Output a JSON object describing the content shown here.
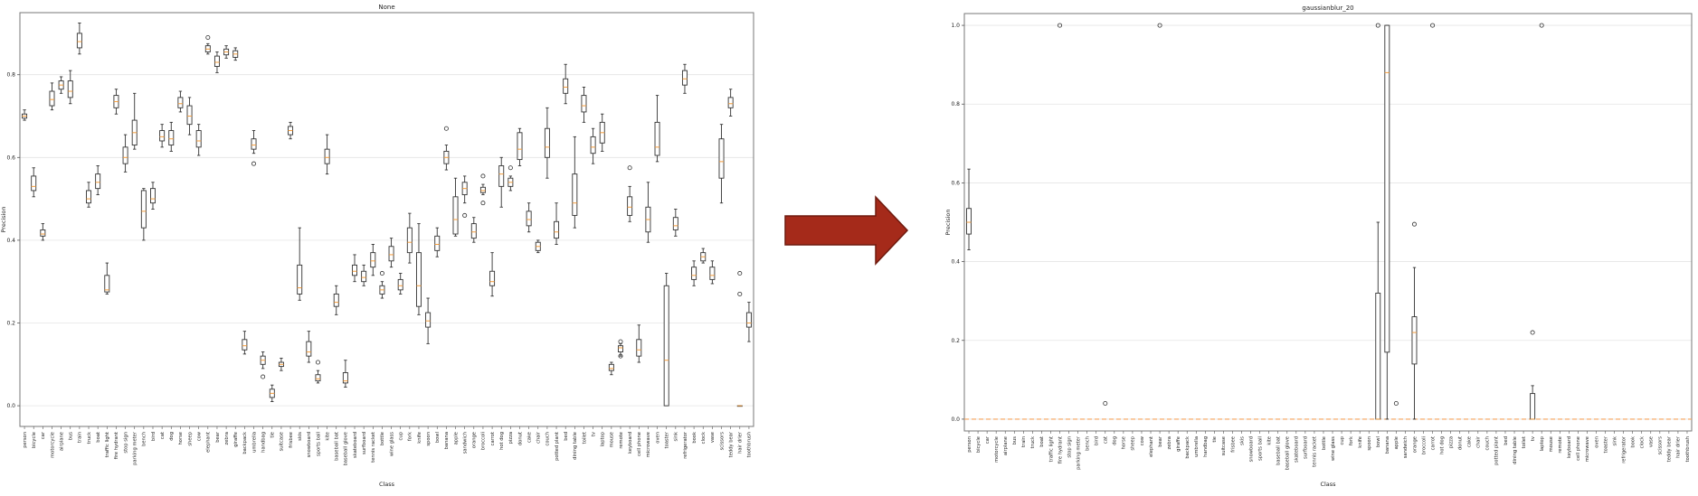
{
  "categories": [
    "person",
    "bicycle",
    "car",
    "motorcycle",
    "airplane",
    "bus",
    "train",
    "truck",
    "boat",
    "traffic light",
    "fire hydrant",
    "stop sign",
    "parking meter",
    "bench",
    "bird",
    "cat",
    "dog",
    "horse",
    "sheep",
    "cow",
    "elephant",
    "bear",
    "zebra",
    "giraffe",
    "backpack",
    "umbrella",
    "handbag",
    "tie",
    "suitcase",
    "frisbee",
    "skis",
    "snowboard",
    "sports ball",
    "kite",
    "baseball bat",
    "baseball glove",
    "skateboard",
    "surfboard",
    "tennis racket",
    "bottle",
    "wine glass",
    "cup",
    "fork",
    "knife",
    "spoon",
    "bowl",
    "banana",
    "apple",
    "sandwich",
    "orange",
    "broccoli",
    "carrot",
    "hot dog",
    "pizza",
    "donut",
    "cake",
    "chair",
    "couch",
    "potted plant",
    "bed",
    "dining table",
    "toilet",
    "tv",
    "laptop",
    "mouse",
    "remote",
    "keyboard",
    "cell phone",
    "microwave",
    "oven",
    "toaster",
    "sink",
    "refrigerator",
    "book",
    "clock",
    "vase",
    "scissors",
    "teddy bear",
    "hair drier",
    "toothbrush"
  ],
  "arrow_color": "#a52a1a",
  "chart_data": [
    {
      "type": "box",
      "title": "None",
      "xlabel": "Class",
      "ylabel": "Precision",
      "ylim": [
        -0.05,
        0.95
      ],
      "yticks": [
        0.0,
        0.2,
        0.4,
        0.6,
        0.8
      ],
      "ytick_labels": [
        "0.0",
        "0.2",
        "0.4",
        "0.6",
        "0.8"
      ],
      "grid": true,
      "boxes": [
        {
          "q1": 0.695,
          "med": 0.7,
          "q3": 0.705,
          "lo": 0.69,
          "hi": 0.715,
          "fl": []
        },
        {
          "q1": 0.52,
          "med": 0.53,
          "q3": 0.555,
          "lo": 0.505,
          "hi": 0.575,
          "fl": []
        },
        {
          "q1": 0.41,
          "med": 0.415,
          "q3": 0.425,
          "lo": 0.4,
          "hi": 0.44,
          "fl": []
        },
        {
          "q1": 0.725,
          "med": 0.74,
          "q3": 0.76,
          "lo": 0.715,
          "hi": 0.78,
          "fl": []
        },
        {
          "q1": 0.765,
          "med": 0.775,
          "q3": 0.785,
          "lo": 0.755,
          "hi": 0.795,
          "fl": []
        },
        {
          "q1": 0.745,
          "med": 0.76,
          "q3": 0.785,
          "lo": 0.73,
          "hi": 0.81,
          "fl": []
        },
        {
          "q1": 0.865,
          "med": 0.88,
          "q3": 0.9,
          "lo": 0.85,
          "hi": 0.925,
          "fl": []
        },
        {
          "q1": 0.49,
          "med": 0.5,
          "q3": 0.52,
          "lo": 0.48,
          "hi": 0.54,
          "fl": []
        },
        {
          "q1": 0.525,
          "med": 0.54,
          "q3": 0.56,
          "lo": 0.51,
          "hi": 0.58,
          "fl": []
        },
        {
          "q1": 0.275,
          "med": 0.28,
          "q3": 0.315,
          "lo": 0.27,
          "hi": 0.345,
          "fl": []
        },
        {
          "q1": 0.72,
          "med": 0.735,
          "q3": 0.75,
          "lo": 0.705,
          "hi": 0.765,
          "fl": []
        },
        {
          "q1": 0.585,
          "med": 0.6,
          "q3": 0.625,
          "lo": 0.565,
          "hi": 0.655,
          "fl": []
        },
        {
          "q1": 0.63,
          "med": 0.66,
          "q3": 0.69,
          "lo": 0.62,
          "hi": 0.755,
          "fl": []
        },
        {
          "q1": 0.43,
          "med": 0.47,
          "q3": 0.52,
          "lo": 0.4,
          "hi": 0.525,
          "fl": []
        },
        {
          "q1": 0.49,
          "med": 0.5,
          "q3": 0.525,
          "lo": 0.475,
          "hi": 0.54,
          "fl": []
        },
        {
          "q1": 0.64,
          "med": 0.65,
          "q3": 0.665,
          "lo": 0.625,
          "hi": 0.68,
          "fl": []
        },
        {
          "q1": 0.63,
          "med": 0.645,
          "q3": 0.665,
          "lo": 0.615,
          "hi": 0.685,
          "fl": []
        },
        {
          "q1": 0.72,
          "med": 0.73,
          "q3": 0.745,
          "lo": 0.71,
          "hi": 0.76,
          "fl": []
        },
        {
          "q1": 0.68,
          "med": 0.7,
          "q3": 0.725,
          "lo": 0.655,
          "hi": 0.745,
          "fl": []
        },
        {
          "q1": 0.625,
          "med": 0.64,
          "q3": 0.665,
          "lo": 0.605,
          "hi": 0.68,
          "fl": []
        },
        {
          "q1": 0.855,
          "med": 0.862,
          "q3": 0.87,
          "lo": 0.85,
          "hi": 0.875,
          "fl": [
            0.89
          ]
        },
        {
          "q1": 0.82,
          "med": 0.83,
          "q3": 0.845,
          "lo": 0.805,
          "hi": 0.855,
          "fl": []
        },
        {
          "q1": 0.848,
          "med": 0.855,
          "q3": 0.862,
          "lo": 0.84,
          "hi": 0.87,
          "fl": []
        },
        {
          "q1": 0.842,
          "med": 0.85,
          "q3": 0.858,
          "lo": 0.835,
          "hi": 0.865,
          "fl": []
        },
        {
          "q1": 0.135,
          "med": 0.145,
          "q3": 0.16,
          "lo": 0.125,
          "hi": 0.18,
          "fl": []
        },
        {
          "q1": 0.62,
          "med": 0.63,
          "q3": 0.645,
          "lo": 0.61,
          "hi": 0.665,
          "fl": [
            0.585
          ]
        },
        {
          "q1": 0.1,
          "med": 0.11,
          "q3": 0.12,
          "lo": 0.09,
          "hi": 0.13,
          "fl": [
            0.07
          ]
        },
        {
          "q1": 0.02,
          "med": 0.03,
          "q3": 0.04,
          "lo": 0.01,
          "hi": 0.05,
          "fl": []
        },
        {
          "q1": 0.095,
          "med": 0.1,
          "q3": 0.105,
          "lo": 0.085,
          "hi": 0.115,
          "fl": []
        },
        {
          "q1": 0.655,
          "med": 0.665,
          "q3": 0.675,
          "lo": 0.645,
          "hi": 0.685,
          "fl": []
        },
        {
          "q1": 0.27,
          "med": 0.285,
          "q3": 0.34,
          "lo": 0.255,
          "hi": 0.43,
          "fl": []
        },
        {
          "q1": 0.12,
          "med": 0.13,
          "q3": 0.155,
          "lo": 0.105,
          "hi": 0.18,
          "fl": []
        },
        {
          "q1": 0.06,
          "med": 0.065,
          "q3": 0.075,
          "lo": 0.055,
          "hi": 0.085,
          "fl": [
            0.105
          ]
        },
        {
          "q1": 0.585,
          "med": 0.6,
          "q3": 0.62,
          "lo": 0.56,
          "hi": 0.655,
          "fl": []
        },
        {
          "q1": 0.24,
          "med": 0.25,
          "q3": 0.27,
          "lo": 0.22,
          "hi": 0.29,
          "fl": []
        },
        {
          "q1": 0.055,
          "med": 0.06,
          "q3": 0.08,
          "lo": 0.045,
          "hi": 0.11,
          "fl": []
        },
        {
          "q1": 0.315,
          "med": 0.325,
          "q3": 0.34,
          "lo": 0.3,
          "hi": 0.365,
          "fl": []
        },
        {
          "q1": 0.3,
          "med": 0.31,
          "q3": 0.325,
          "lo": 0.29,
          "hi": 0.34,
          "fl": []
        },
        {
          "q1": 0.335,
          "med": 0.35,
          "q3": 0.37,
          "lo": 0.315,
          "hi": 0.39,
          "fl": []
        },
        {
          "q1": 0.27,
          "med": 0.28,
          "q3": 0.29,
          "lo": 0.26,
          "hi": 0.3,
          "fl": [
            0.32
          ]
        },
        {
          "q1": 0.35,
          "med": 0.365,
          "q3": 0.385,
          "lo": 0.335,
          "hi": 0.405,
          "fl": []
        },
        {
          "q1": 0.28,
          "med": 0.29,
          "q3": 0.305,
          "lo": 0.27,
          "hi": 0.32,
          "fl": []
        },
        {
          "q1": 0.37,
          "med": 0.395,
          "q3": 0.43,
          "lo": 0.345,
          "hi": 0.465,
          "fl": []
        },
        {
          "q1": 0.24,
          "med": 0.29,
          "q3": 0.37,
          "lo": 0.22,
          "hi": 0.44,
          "fl": []
        },
        {
          "q1": 0.19,
          "med": 0.205,
          "q3": 0.225,
          "lo": 0.15,
          "hi": 0.26,
          "fl": []
        },
        {
          "q1": 0.375,
          "med": 0.39,
          "q3": 0.41,
          "lo": 0.36,
          "hi": 0.43,
          "fl": []
        },
        {
          "q1": 0.585,
          "med": 0.6,
          "q3": 0.615,
          "lo": 0.57,
          "hi": 0.63,
          "fl": [
            0.67
          ]
        },
        {
          "q1": 0.415,
          "med": 0.45,
          "q3": 0.505,
          "lo": 0.41,
          "hi": 0.55,
          "fl": []
        },
        {
          "q1": 0.51,
          "med": 0.525,
          "q3": 0.54,
          "lo": 0.49,
          "hi": 0.555,
          "fl": [
            0.46
          ]
        },
        {
          "q1": 0.405,
          "med": 0.42,
          "q3": 0.44,
          "lo": 0.395,
          "hi": 0.455,
          "fl": []
        },
        {
          "q1": 0.515,
          "med": 0.52,
          "q3": 0.528,
          "lo": 0.51,
          "hi": 0.535,
          "fl": [
            0.555,
            0.49
          ]
        },
        {
          "q1": 0.29,
          "med": 0.3,
          "q3": 0.325,
          "lo": 0.265,
          "hi": 0.37,
          "fl": []
        },
        {
          "q1": 0.53,
          "med": 0.56,
          "q3": 0.58,
          "lo": 0.48,
          "hi": 0.6,
          "fl": []
        },
        {
          "q1": 0.53,
          "med": 0.54,
          "q3": 0.55,
          "lo": 0.52,
          "hi": 0.555,
          "fl": [
            0.575
          ]
        },
        {
          "q1": 0.595,
          "med": 0.62,
          "q3": 0.66,
          "lo": 0.58,
          "hi": 0.67,
          "fl": []
        },
        {
          "q1": 0.435,
          "med": 0.45,
          "q3": 0.47,
          "lo": 0.42,
          "hi": 0.49,
          "fl": []
        },
        {
          "q1": 0.375,
          "med": 0.385,
          "q3": 0.395,
          "lo": 0.37,
          "hi": 0.4,
          "fl": []
        },
        {
          "q1": 0.6,
          "med": 0.625,
          "q3": 0.67,
          "lo": 0.55,
          "hi": 0.72,
          "fl": []
        },
        {
          "q1": 0.405,
          "med": 0.42,
          "q3": 0.445,
          "lo": 0.39,
          "hi": 0.49,
          "fl": []
        },
        {
          "q1": 0.755,
          "med": 0.77,
          "q3": 0.79,
          "lo": 0.73,
          "hi": 0.825,
          "fl": []
        },
        {
          "q1": 0.46,
          "med": 0.49,
          "q3": 0.56,
          "lo": 0.43,
          "hi": 0.65,
          "fl": []
        },
        {
          "q1": 0.71,
          "med": 0.725,
          "q3": 0.75,
          "lo": 0.685,
          "hi": 0.77,
          "fl": []
        },
        {
          "q1": 0.61,
          "med": 0.625,
          "q3": 0.65,
          "lo": 0.585,
          "hi": 0.67,
          "fl": []
        },
        {
          "q1": 0.635,
          "med": 0.66,
          "q3": 0.685,
          "lo": 0.615,
          "hi": 0.705,
          "fl": []
        },
        {
          "q1": 0.085,
          "med": 0.09,
          "q3": 0.1,
          "lo": 0.075,
          "hi": 0.105,
          "fl": []
        },
        {
          "q1": 0.13,
          "med": 0.14,
          "q3": 0.145,
          "lo": 0.12,
          "hi": 0.15,
          "fl": [
            0.155,
            0.12
          ]
        },
        {
          "q1": 0.46,
          "med": 0.48,
          "q3": 0.505,
          "lo": 0.445,
          "hi": 0.53,
          "fl": [
            0.575
          ]
        },
        {
          "q1": 0.12,
          "med": 0.135,
          "q3": 0.16,
          "lo": 0.105,
          "hi": 0.195,
          "fl": []
        },
        {
          "q1": 0.42,
          "med": 0.45,
          "q3": 0.48,
          "lo": 0.395,
          "hi": 0.54,
          "fl": []
        },
        {
          "q1": 0.605,
          "med": 0.625,
          "q3": 0.685,
          "lo": 0.59,
          "hi": 0.75,
          "fl": []
        },
        {
          "q1": 0.0,
          "med": 0.11,
          "q3": 0.29,
          "lo": 0.0,
          "hi": 0.32,
          "fl": []
        },
        {
          "q1": 0.425,
          "med": 0.435,
          "q3": 0.455,
          "lo": 0.41,
          "hi": 0.475,
          "fl": []
        },
        {
          "q1": 0.775,
          "med": 0.79,
          "q3": 0.81,
          "lo": 0.755,
          "hi": 0.825,
          "fl": []
        },
        {
          "q1": 0.305,
          "med": 0.315,
          "q3": 0.335,
          "lo": 0.29,
          "hi": 0.35,
          "fl": []
        },
        {
          "q1": 0.35,
          "med": 0.36,
          "q3": 0.37,
          "lo": 0.345,
          "hi": 0.38,
          "fl": []
        },
        {
          "q1": 0.305,
          "med": 0.315,
          "q3": 0.335,
          "lo": 0.295,
          "hi": 0.35,
          "fl": []
        },
        {
          "q1": 0.55,
          "med": 0.59,
          "q3": 0.645,
          "lo": 0.49,
          "hi": 0.68,
          "fl": []
        },
        {
          "q1": 0.72,
          "med": 0.73,
          "q3": 0.745,
          "lo": 0.7,
          "hi": 0.765,
          "fl": []
        },
        {
          "q1": 0.0,
          "med": 0.0,
          "q3": 0.0,
          "lo": 0.0,
          "hi": 0.0,
          "fl": [
            0.32,
            0.27
          ]
        },
        {
          "q1": 0.19,
          "med": 0.2,
          "q3": 0.225,
          "lo": 0.155,
          "hi": 0.25,
          "fl": []
        }
      ]
    },
    {
      "type": "box",
      "title": "gaussianblur_20",
      "xlabel": "Class",
      "ylabel": "Precision",
      "ylim": [
        -0.03,
        1.03
      ],
      "yticks": [
        0.0,
        0.2,
        0.4,
        0.6,
        0.8,
        1.0
      ],
      "ytick_labels": [
        "0.0",
        "0.2",
        "0.4",
        "0.6",
        "0.8",
        "1.0"
      ],
      "grid": true,
      "baseline": 0.0,
      "boxes": [
        {
          "i": 0,
          "q1": 0.47,
          "med": 0.5,
          "q3": 0.535,
          "lo": 0.43,
          "hi": 0.635,
          "fl": []
        },
        {
          "i": 10,
          "fl": [
            1.0
          ]
        },
        {
          "i": 15,
          "fl": [
            0.04
          ]
        },
        {
          "i": 21,
          "fl": [
            1.0
          ]
        },
        {
          "i": 45,
          "q1": 0.0,
          "med": 0.0,
          "q3": 0.32,
          "lo": 0.0,
          "hi": 0.5,
          "fl": [
            1.0
          ]
        },
        {
          "i": 46,
          "q1": 0.17,
          "med": 0.88,
          "q3": 1.0,
          "lo": 0.0,
          "hi": 1.0,
          "fl": []
        },
        {
          "i": 47,
          "fl": [
            0.04
          ]
        },
        {
          "i": 49,
          "q1": 0.14,
          "med": 0.22,
          "q3": 0.26,
          "lo": 0.0,
          "hi": 0.385,
          "fl": [
            0.495
          ]
        },
        {
          "i": 51,
          "fl": [
            1.0
          ]
        },
        {
          "i": 62,
          "q1": 0.0,
          "med": 0.0,
          "q3": 0.065,
          "lo": 0.0,
          "hi": 0.085,
          "fl": [
            0.22
          ]
        },
        {
          "i": 63,
          "fl": [
            1.0
          ]
        }
      ]
    }
  ]
}
